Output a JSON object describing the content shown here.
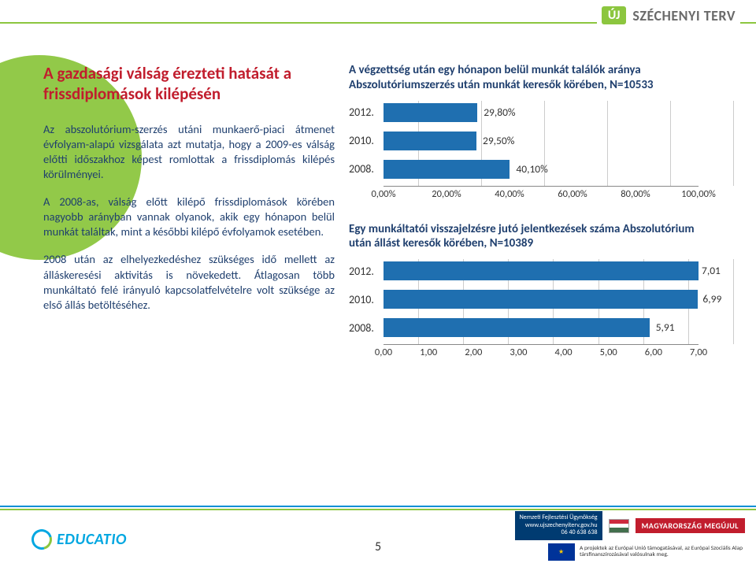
{
  "header": {
    "uj": "ÚJ",
    "brand": "SZÉCHENYI TERV"
  },
  "left": {
    "title": "A gazdasági válság érezteti hatását a frissdiplomások kilépésén",
    "para1": "Az abszolutórium-szerzés utáni munkaerő-piaci átmenet évfolyam-alapú vizsgálata azt mutatja, hogy a 2009-es válság előtti időszakhoz képest romlottak a frissdiplomás kilépés körülményei.",
    "para2": "A 2008-as, válság előtt kilépő frissdiplomások körében nagyobb arányban vannak olyanok, akik egy hónapon belül munkát találtak, mint a későbbi kilépő évfolyamok esetében.",
    "para3": "2008 után az elhelyezkedéshez szükséges idő mellett az álláskeresési aktivitás is növekedett. Átlagosan több munkáltató felé irányuló kapcsolatfelvételre volt szüksége az első állás betöltéséhez."
  },
  "chart1": {
    "title": "A végzettség után egy hónapon belül munkát találók aránya Abszolutóriumszerzés után munkát keresők körében, N=10533",
    "type": "bar-horizontal",
    "bar_color": "#1f6fb0",
    "bg": "#ffffff",
    "categories": [
      "2012.",
      "2010.",
      "2008."
    ],
    "values": [
      29.8,
      29.5,
      40.1
    ],
    "value_labels": [
      "29,80%",
      "29,50%",
      "40,10%"
    ],
    "xmin": 0,
    "xmax": 100,
    "xticks": [
      0,
      20,
      40,
      60,
      80,
      100
    ],
    "xtick_labels": [
      "0,00%",
      "20,00%",
      "40,00%",
      "60,00%",
      "80,00%",
      "100,00%"
    ],
    "value_label_fontsize": 13.5,
    "axis_fontsize": 12.5
  },
  "chart2": {
    "title": "Egy munkáltatói visszajelzésre jutó jelentkezések száma Abszolutórium után állást keresők körében, N=10389",
    "type": "bar-horizontal",
    "bar_color": "#1f6fb0",
    "bg": "#ffffff",
    "categories": [
      "2012.",
      "2010.",
      "2008."
    ],
    "values": [
      7.01,
      6.99,
      5.91
    ],
    "value_labels": [
      "7,01",
      "6,99",
      "5,91"
    ],
    "xmin": 0,
    "xmax": 7,
    "xticks": [
      0,
      1,
      2,
      3,
      4,
      5,
      6,
      7
    ],
    "xtick_labels": [
      "0,00",
      "1,00",
      "2,00",
      "3,00",
      "4,00",
      "5,00",
      "6,00",
      "7,00"
    ],
    "value_label_fontsize": 13.5,
    "axis_fontsize": 12.5
  },
  "footer": {
    "edu": "EDUCATIO",
    "page": "5",
    "agency_l1": "Nemzeti Fejlesztési Ügynökség",
    "agency_l2": "www.ujszechenyiterv.gov.hu",
    "agency_l3": "06 40 638 638",
    "mru": "MAGYARORSZÁG MEGÚJUL",
    "eu": "A projektek az Európai Unió támogatásával, az Európai Szociális Alap társfinanszírozásával valósulnak meg."
  },
  "colors": {
    "accent_green": "#8cc63f",
    "accent_red": "#c11d2d",
    "text_navy": "#1f3f6e",
    "bar_blue": "#1f6fb0"
  }
}
